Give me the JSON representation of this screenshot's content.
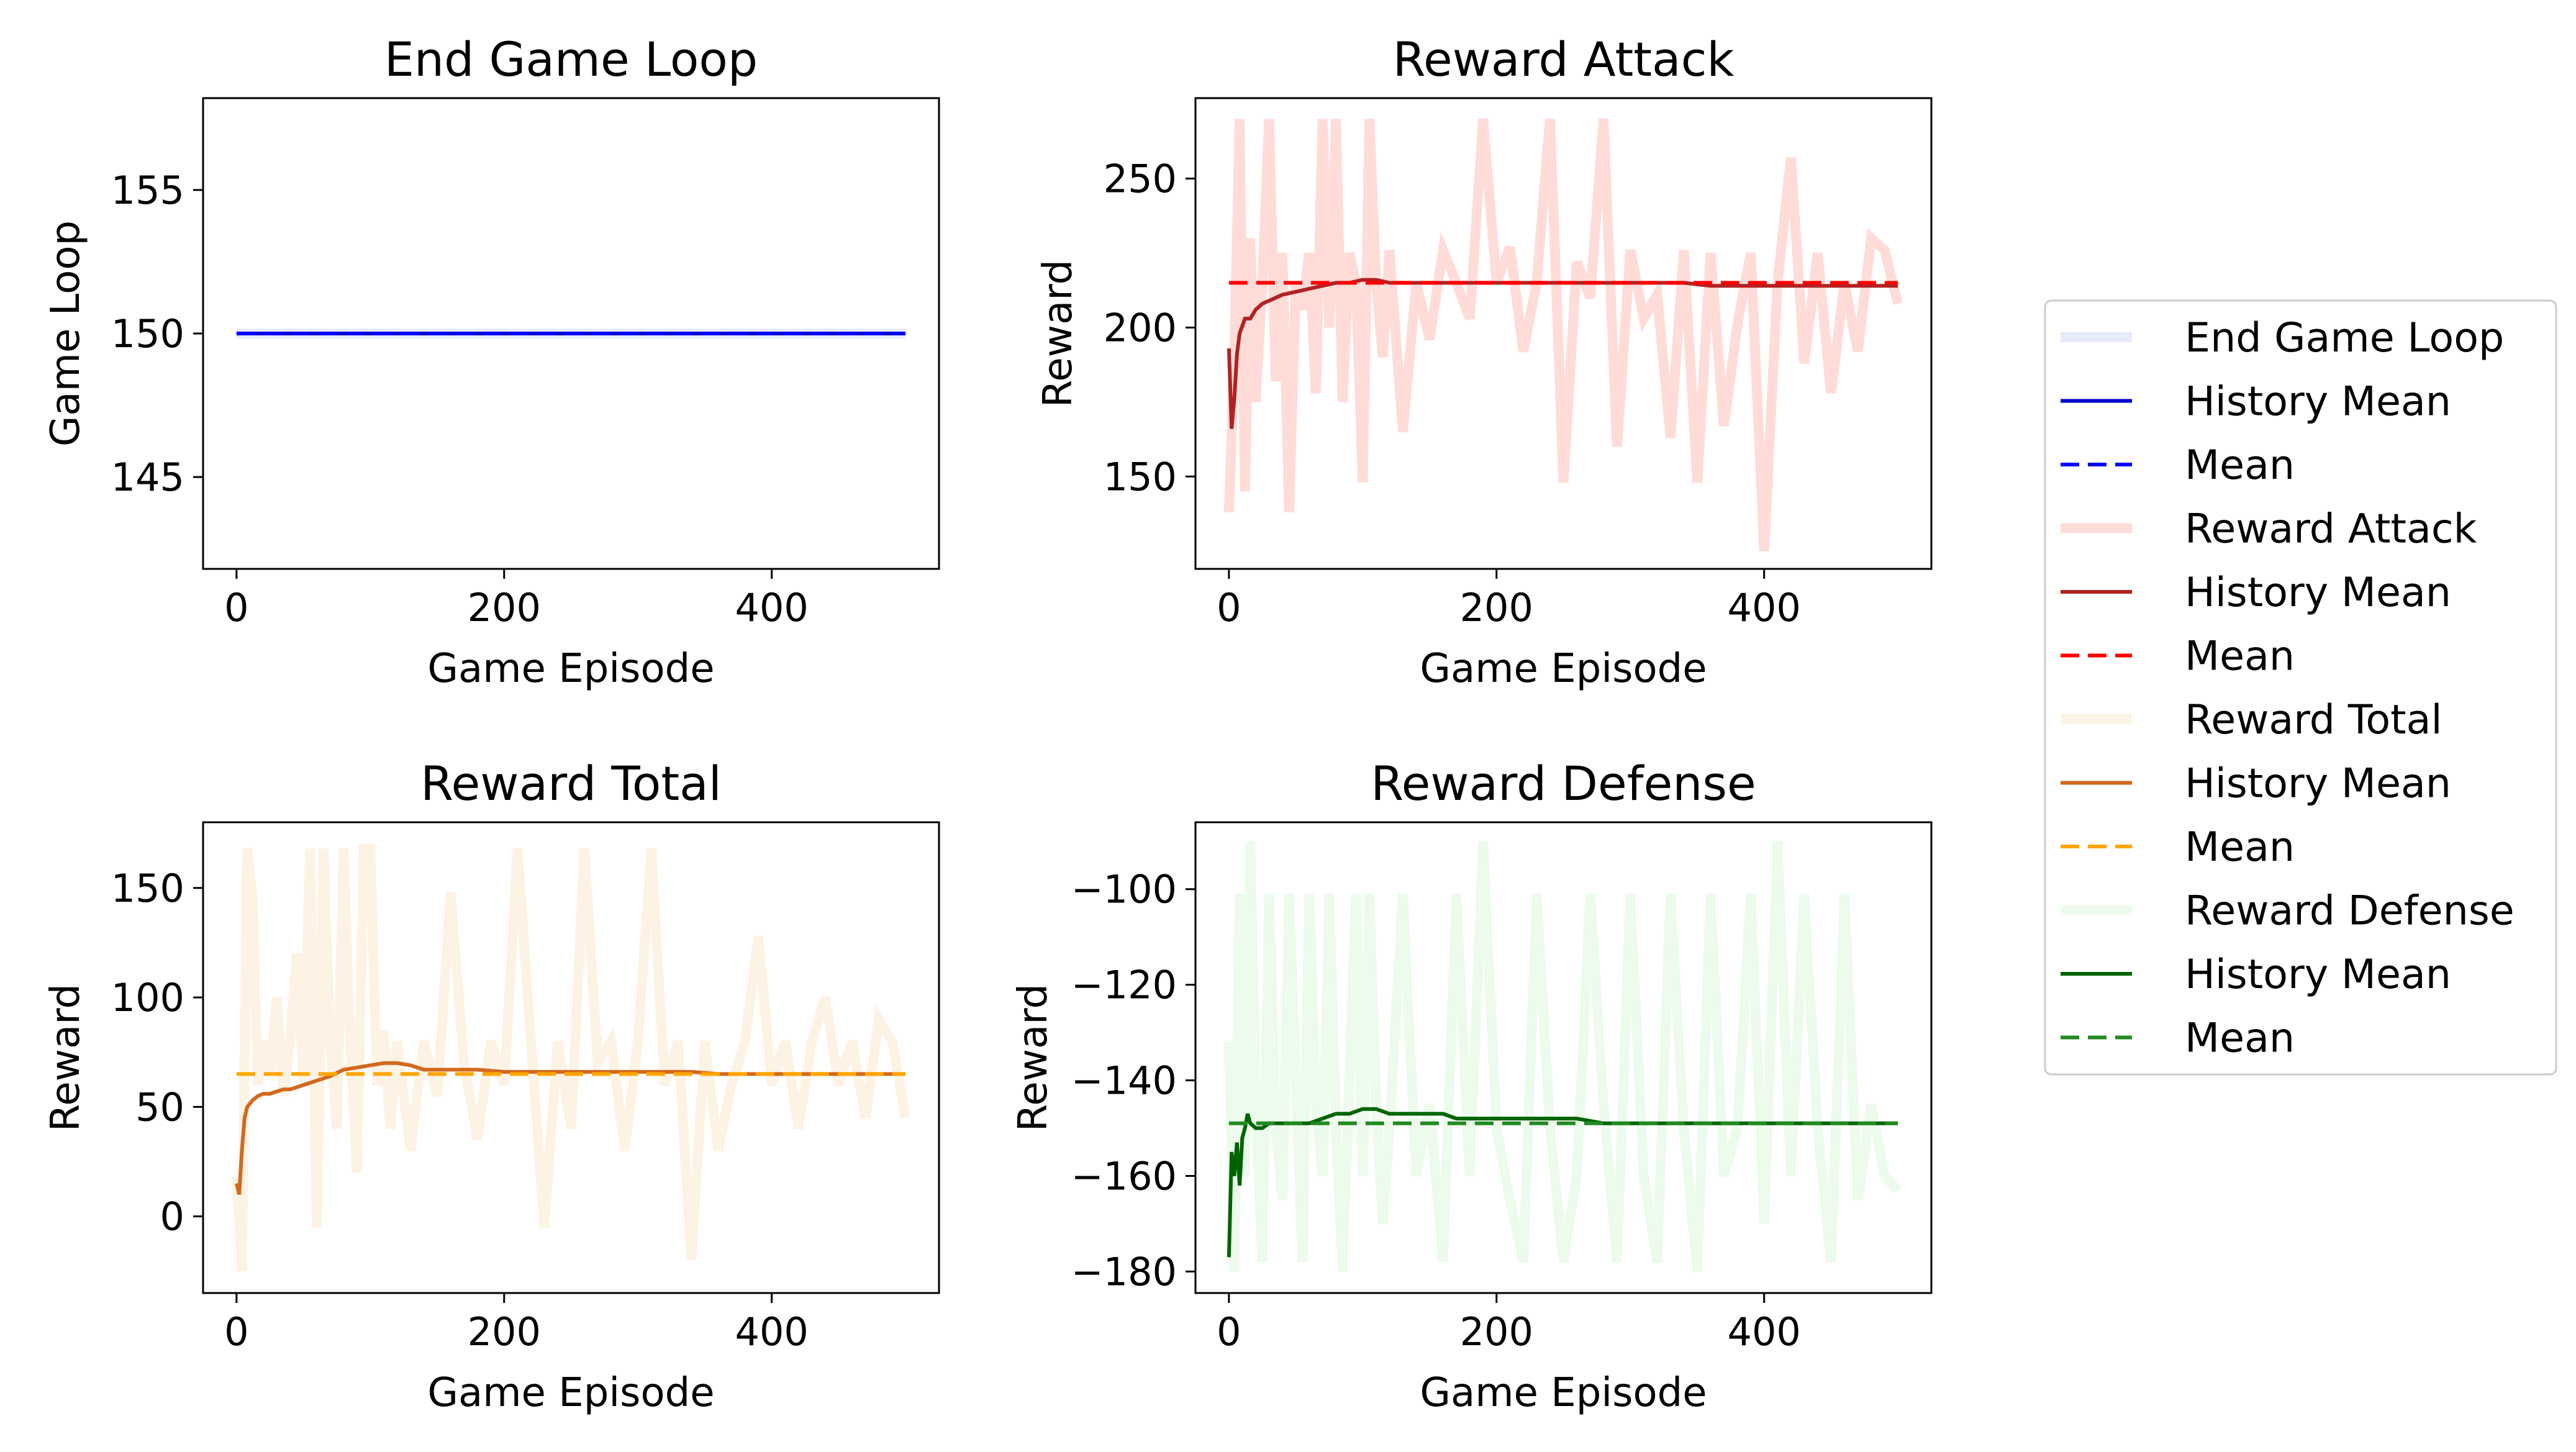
{
  "chart_data": [
    {
      "type": "line",
      "title": "End Game Loop",
      "xlabel": "Game Episode",
      "ylabel": "Game Loop",
      "xlim": [
        -25,
        525
      ],
      "ylim": [
        141.8,
        158.2
      ],
      "xticks": [
        0,
        200,
        400
      ],
      "yticks": [
        145,
        150,
        155
      ],
      "series": [
        {
          "name": "End Game Loop",
          "color": "#e6ebfb",
          "style": "raw",
          "x": [
            0,
            500
          ],
          "y": [
            150,
            150
          ]
        },
        {
          "name": "History Mean",
          "color": "#0000cc",
          "style": "solid",
          "x": [
            0,
            500
          ],
          "y": [
            150,
            150
          ]
        },
        {
          "name": "Mean",
          "color": "#0000ff",
          "style": "dashed",
          "x": [
            0,
            500
          ],
          "y": [
            150,
            150
          ]
        }
      ]
    },
    {
      "type": "line",
      "title": "Reward Attack",
      "xlabel": "Game Episode",
      "ylabel": "Reward",
      "xlim": [
        -25,
        525
      ],
      "ylim": [
        119,
        277
      ],
      "xticks": [
        0,
        200,
        400
      ],
      "yticks": [
        150,
        200,
        250
      ],
      "series": [
        {
          "name": "Reward Attack",
          "color": "#ffdcd8",
          "style": "raw",
          "x": [
            0,
            4,
            8,
            12,
            16,
            20,
            25,
            30,
            35,
            40,
            45,
            50,
            55,
            60,
            65,
            70,
            75,
            80,
            85,
            90,
            95,
            100,
            105,
            110,
            115,
            120,
            130,
            140,
            150,
            160,
            170,
            180,
            190,
            200,
            210,
            220,
            230,
            240,
            250,
            260,
            270,
            280,
            290,
            300,
            310,
            320,
            330,
            340,
            350,
            360,
            370,
            380,
            390,
            400,
            410,
            420,
            430,
            440,
            450,
            460,
            470,
            480,
            490,
            500
          ],
          "y": [
            138,
            190,
            270,
            145,
            230,
            175,
            215,
            270,
            182,
            225,
            138,
            215,
            206,
            225,
            178,
            270,
            200,
            270,
            175,
            225,
            215,
            148,
            270,
            215,
            190,
            226,
            165,
            215,
            196,
            226,
            215,
            203,
            270,
            215,
            227,
            192,
            215,
            270,
            148,
            222,
            210,
            270,
            160,
            226,
            203,
            211,
            163,
            226,
            148,
            225,
            167,
            201,
            225,
            125,
            215,
            257,
            188,
            225,
            178,
            215,
            192,
            230,
            226,
            208
          ]
        },
        {
          "name": "History Mean",
          "color": "#b22222",
          "style": "solid",
          "x": [
            0,
            2,
            4,
            6,
            8,
            12,
            16,
            20,
            25,
            30,
            35,
            40,
            50,
            60,
            70,
            80,
            90,
            100,
            110,
            120,
            140,
            160,
            180,
            200,
            220,
            240,
            260,
            280,
            300,
            320,
            340,
            360,
            380,
            400,
            420,
            440,
            460,
            480,
            500
          ],
          "y": [
            193,
            166,
            176,
            191,
            198,
            203,
            203,
            206,
            208,
            209,
            210,
            211,
            212,
            213,
            214,
            215,
            215,
            216,
            216,
            215,
            215,
            215,
            215,
            215,
            215,
            215,
            215,
            215,
            215,
            215,
            215,
            214,
            214,
            214,
            214,
            214,
            214,
            214,
            214
          ]
        },
        {
          "name": "Mean",
          "color": "#ff0000",
          "style": "dashed",
          "x": [
            0,
            500
          ],
          "y": [
            215,
            215
          ]
        }
      ]
    },
    {
      "type": "line",
      "title": "Reward Total",
      "xlabel": "Game Episode",
      "ylabel": "Reward",
      "xlim": [
        -25,
        525
      ],
      "ylim": [
        -35,
        180
      ],
      "xticks": [
        0,
        200,
        400
      ],
      "yticks": [
        0,
        50,
        100,
        150
      ],
      "series": [
        {
          "name": "Reward Total",
          "color": "#fdf3e4",
          "style": "raw",
          "x": [
            0,
            4,
            8,
            12,
            16,
            20,
            25,
            30,
            35,
            40,
            45,
            50,
            55,
            60,
            65,
            70,
            75,
            80,
            85,
            90,
            95,
            100,
            105,
            110,
            115,
            120,
            130,
            140,
            150,
            160,
            170,
            180,
            190,
            200,
            210,
            220,
            230,
            240,
            250,
            260,
            270,
            280,
            290,
            300,
            310,
            320,
            330,
            340,
            350,
            360,
            370,
            380,
            390,
            400,
            410,
            420,
            430,
            440,
            450,
            460,
            470,
            480,
            490,
            500
          ],
          "y": [
            18,
            -25,
            168,
            145,
            60,
            80,
            65,
            100,
            55,
            80,
            120,
            60,
            168,
            -5,
            168,
            80,
            40,
            168,
            80,
            20,
            168,
            168,
            60,
            85,
            40,
            80,
            30,
            80,
            55,
            148,
            70,
            35,
            80,
            60,
            168,
            80,
            -5,
            80,
            40,
            168,
            70,
            80,
            30,
            80,
            168,
            60,
            80,
            -20,
            80,
            30,
            60,
            80,
            128,
            60,
            80,
            40,
            80,
            100,
            60,
            80,
            45,
            90,
            80,
            45
          ]
        },
        {
          "name": "History Mean",
          "color": "#d2691e",
          "style": "solid",
          "x": [
            0,
            2,
            4,
            6,
            8,
            12,
            16,
            20,
            25,
            30,
            35,
            40,
            50,
            60,
            70,
            80,
            90,
            100,
            110,
            120,
            130,
            140,
            160,
            180,
            200,
            220,
            240,
            260,
            280,
            300,
            320,
            340,
            360,
            380,
            400,
            420,
            440,
            460,
            480,
            500
          ],
          "y": [
            15,
            10,
            30,
            45,
            50,
            53,
            55,
            56,
            56,
            57,
            58,
            58,
            60,
            62,
            64,
            67,
            68,
            69,
            70,
            70,
            69,
            67,
            67,
            67,
            66,
            66,
            66,
            66,
            66,
            66,
            66,
            66,
            65,
            65,
            65,
            65,
            65,
            65,
            65,
            65
          ]
        },
        {
          "name": "Mean",
          "color": "#ffa500",
          "style": "dashed",
          "x": [
            0,
            500
          ],
          "y": [
            65,
            65
          ]
        }
      ]
    },
    {
      "type": "line",
      "title": "Reward Defense",
      "xlabel": "Game Episode",
      "ylabel": "Reward",
      "xlim": [
        -25,
        525
      ],
      "ylim": [
        -184.5,
        -86
      ],
      "xticks": [
        0,
        200,
        400
      ],
      "yticks": [
        -180,
        -160,
        -140,
        -120,
        -100
      ],
      "series": [
        {
          "name": "Reward Defense",
          "color": "#ecfbec",
          "style": "raw",
          "x": [
            0,
            4,
            8,
            12,
            16,
            20,
            25,
            30,
            35,
            40,
            45,
            50,
            55,
            60,
            65,
            70,
            75,
            80,
            85,
            90,
            95,
            100,
            105,
            110,
            115,
            120,
            130,
            140,
            150,
            160,
            170,
            180,
            190,
            200,
            210,
            220,
            230,
            240,
            250,
            260,
            270,
            280,
            290,
            300,
            310,
            320,
            330,
            340,
            350,
            360,
            370,
            380,
            390,
            400,
            410,
            420,
            430,
            440,
            450,
            460,
            470,
            480,
            490,
            500
          ],
          "y": [
            -132,
            -180,
            -101,
            -160,
            -90,
            -145,
            -178,
            -101,
            -150,
            -165,
            -101,
            -140,
            -178,
            -101,
            -145,
            -160,
            -101,
            -150,
            -180,
            -140,
            -101,
            -160,
            -101,
            -145,
            -170,
            -150,
            -101,
            -160,
            -145,
            -178,
            -101,
            -160,
            -90,
            -150,
            -165,
            -178,
            -101,
            -150,
            -178,
            -160,
            -101,
            -145,
            -178,
            -101,
            -160,
            -178,
            -101,
            -150,
            -180,
            -101,
            -160,
            -150,
            -101,
            -170,
            -90,
            -160,
            -101,
            -150,
            -178,
            -101,
            -165,
            -145,
            -160,
            -163
          ]
        },
        {
          "name": "History Mean",
          "color": "#006400",
          "style": "solid",
          "x": [
            0,
            2,
            4,
            6,
            8,
            10,
            12,
            14,
            16,
            20,
            25,
            30,
            40,
            50,
            60,
            70,
            80,
            90,
            100,
            110,
            120,
            130,
            140,
            150,
            160,
            170,
            180,
            200,
            220,
            240,
            260,
            280,
            300,
            320,
            340,
            360,
            380,
            400,
            420,
            440,
            460,
            480,
            500
          ],
          "y": [
            -177,
            -155,
            -160,
            -153,
            -162,
            -152,
            -150,
            -147,
            -149,
            -150,
            -150,
            -149,
            -149,
            -149,
            -149,
            -148,
            -147,
            -147,
            -146,
            -146,
            -147,
            -147,
            -147,
            -147,
            -147,
            -148,
            -148,
            -148,
            -148,
            -148,
            -148,
            -149,
            -149,
            -149,
            -149,
            -149,
            -149,
            -149,
            -149,
            -149,
            -149,
            -149,
            -149
          ]
        },
        {
          "name": "Mean",
          "color": "#228b22",
          "style": "dashed",
          "x": [
            0,
            500
          ],
          "y": [
            -149,
            -149
          ]
        }
      ]
    }
  ],
  "legend": {
    "placement": "right",
    "entries": [
      {
        "label": "End Game Loop",
        "color": "#e6ebfb",
        "style": "raw"
      },
      {
        "label": "History Mean",
        "color": "#0000cc",
        "style": "solid"
      },
      {
        "label": "Mean",
        "color": "#0000ff",
        "style": "dashed"
      },
      {
        "label": "Reward Attack",
        "color": "#ffdcd8",
        "style": "raw"
      },
      {
        "label": "History Mean",
        "color": "#b22222",
        "style": "solid"
      },
      {
        "label": "Mean",
        "color": "#ff0000",
        "style": "dashed"
      },
      {
        "label": "Reward Total",
        "color": "#fdf3e4",
        "style": "raw"
      },
      {
        "label": "History Mean",
        "color": "#d2691e",
        "style": "solid"
      },
      {
        "label": "Mean",
        "color": "#ffa500",
        "style": "dashed"
      },
      {
        "label": "Reward Defense",
        "color": "#ecfbec",
        "style": "raw"
      },
      {
        "label": "History Mean",
        "color": "#006400",
        "style": "solid"
      },
      {
        "label": "Mean",
        "color": "#228b22",
        "style": "dashed"
      }
    ]
  }
}
